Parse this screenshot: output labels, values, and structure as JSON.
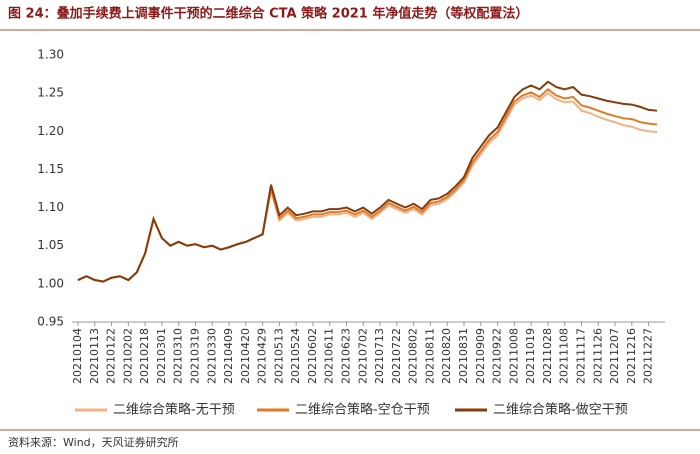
{
  "chart_data": {
    "type": "line",
    "title": "图 24：叠加手续费上调事件干预的二维综合 CTA 策略 2021 年净值走势（等权配置法）",
    "source": "资料来源：Wind，天风证券研究所",
    "categories": [
      "20210104",
      null,
      "20210113",
      null,
      "20210122",
      null,
      "20210202",
      null,
      "20210218",
      null,
      "20210301",
      null,
      "20210310",
      null,
      "20210319",
      null,
      "20210330",
      null,
      "20210409",
      null,
      "20210420",
      null,
      "20210429",
      null,
      "20210513",
      null,
      "20210524",
      null,
      "20210602",
      null,
      "20210611",
      null,
      "20210623",
      null,
      "20210702",
      null,
      "20210713",
      null,
      "20210722",
      null,
      "20210802",
      null,
      "20210811",
      null,
      "20210820",
      null,
      "20210831",
      null,
      "20210909",
      null,
      "20210922",
      null,
      "20211008",
      null,
      "20211019",
      null,
      "20211028",
      null,
      "20211108",
      null,
      "20211117",
      null,
      "20211126",
      null,
      "20211207",
      null,
      "20211216",
      null,
      "20211227",
      null
    ],
    "series": [
      {
        "name": "二维综合策略-无干预",
        "color": "#f4b183",
        "values": [
          1.005,
          1.01,
          1.005,
          1.003,
          1.008,
          1.01,
          1.005,
          1.015,
          1.04,
          1.085,
          1.06,
          1.05,
          1.055,
          1.05,
          1.052,
          1.048,
          1.05,
          1.045,
          1.048,
          1.052,
          1.055,
          1.06,
          1.065,
          1.122,
          1.083,
          1.093,
          1.083,
          1.085,
          1.088,
          1.088,
          1.091,
          1.091,
          1.093,
          1.088,
          1.093,
          1.085,
          1.093,
          1.103,
          1.098,
          1.093,
          1.098,
          1.091,
          1.103,
          1.105,
          1.111,
          1.121,
          1.133,
          1.155,
          1.17,
          1.185,
          1.195,
          1.215,
          1.235,
          1.243,
          1.247,
          1.241,
          1.25,
          1.242,
          1.238,
          1.239,
          1.227,
          1.224,
          1.219,
          1.215,
          1.212,
          1.208,
          1.206,
          1.202,
          1.2,
          1.199
        ]
      },
      {
        "name": "二维综合策略-空仓干预",
        "color": "#e07b2c",
        "values": [
          1.005,
          1.01,
          1.005,
          1.003,
          1.008,
          1.01,
          1.005,
          1.015,
          1.04,
          1.085,
          1.06,
          1.05,
          1.055,
          1.05,
          1.052,
          1.048,
          1.05,
          1.045,
          1.048,
          1.052,
          1.055,
          1.06,
          1.065,
          1.125,
          1.086,
          1.096,
          1.086,
          1.088,
          1.091,
          1.091,
          1.094,
          1.094,
          1.096,
          1.091,
          1.096,
          1.088,
          1.096,
          1.106,
          1.101,
          1.096,
          1.101,
          1.094,
          1.106,
          1.108,
          1.114,
          1.124,
          1.136,
          1.159,
          1.174,
          1.189,
          1.199,
          1.219,
          1.239,
          1.247,
          1.251,
          1.245,
          1.255,
          1.247,
          1.243,
          1.245,
          1.234,
          1.231,
          1.227,
          1.223,
          1.22,
          1.217,
          1.216,
          1.212,
          1.21,
          1.209
        ]
      },
      {
        "name": "二维综合策略-做空干预",
        "color": "#843c0c",
        "values": [
          1.005,
          1.01,
          1.005,
          1.003,
          1.008,
          1.01,
          1.005,
          1.015,
          1.04,
          1.085,
          1.06,
          1.05,
          1.055,
          1.05,
          1.052,
          1.048,
          1.05,
          1.045,
          1.048,
          1.052,
          1.055,
          1.06,
          1.065,
          1.13,
          1.09,
          1.1,
          1.09,
          1.092,
          1.095,
          1.095,
          1.098,
          1.098,
          1.1,
          1.095,
          1.1,
          1.092,
          1.1,
          1.11,
          1.105,
          1.1,
          1.105,
          1.098,
          1.11,
          1.112,
          1.118,
          1.128,
          1.14,
          1.165,
          1.18,
          1.195,
          1.205,
          1.225,
          1.245,
          1.255,
          1.26,
          1.255,
          1.265,
          1.258,
          1.255,
          1.258,
          1.248,
          1.246,
          1.243,
          1.24,
          1.238,
          1.236,
          1.235,
          1.232,
          1.228,
          1.227
        ]
      }
    ],
    "ylim": [
      0.95,
      1.3
    ],
    "yticks": [
      0.95,
      {
        "value": 1.0,
        "label": "1.00"
      },
      1.05,
      {
        "value": 1.1,
        "label": "1.10"
      },
      1.15,
      {
        "value": 1.2,
        "label": "1.20"
      },
      1.25,
      {
        "value": 1.3,
        "label": "1.30"
      }
    ],
    "grid": false,
    "legend": "bottom"
  }
}
